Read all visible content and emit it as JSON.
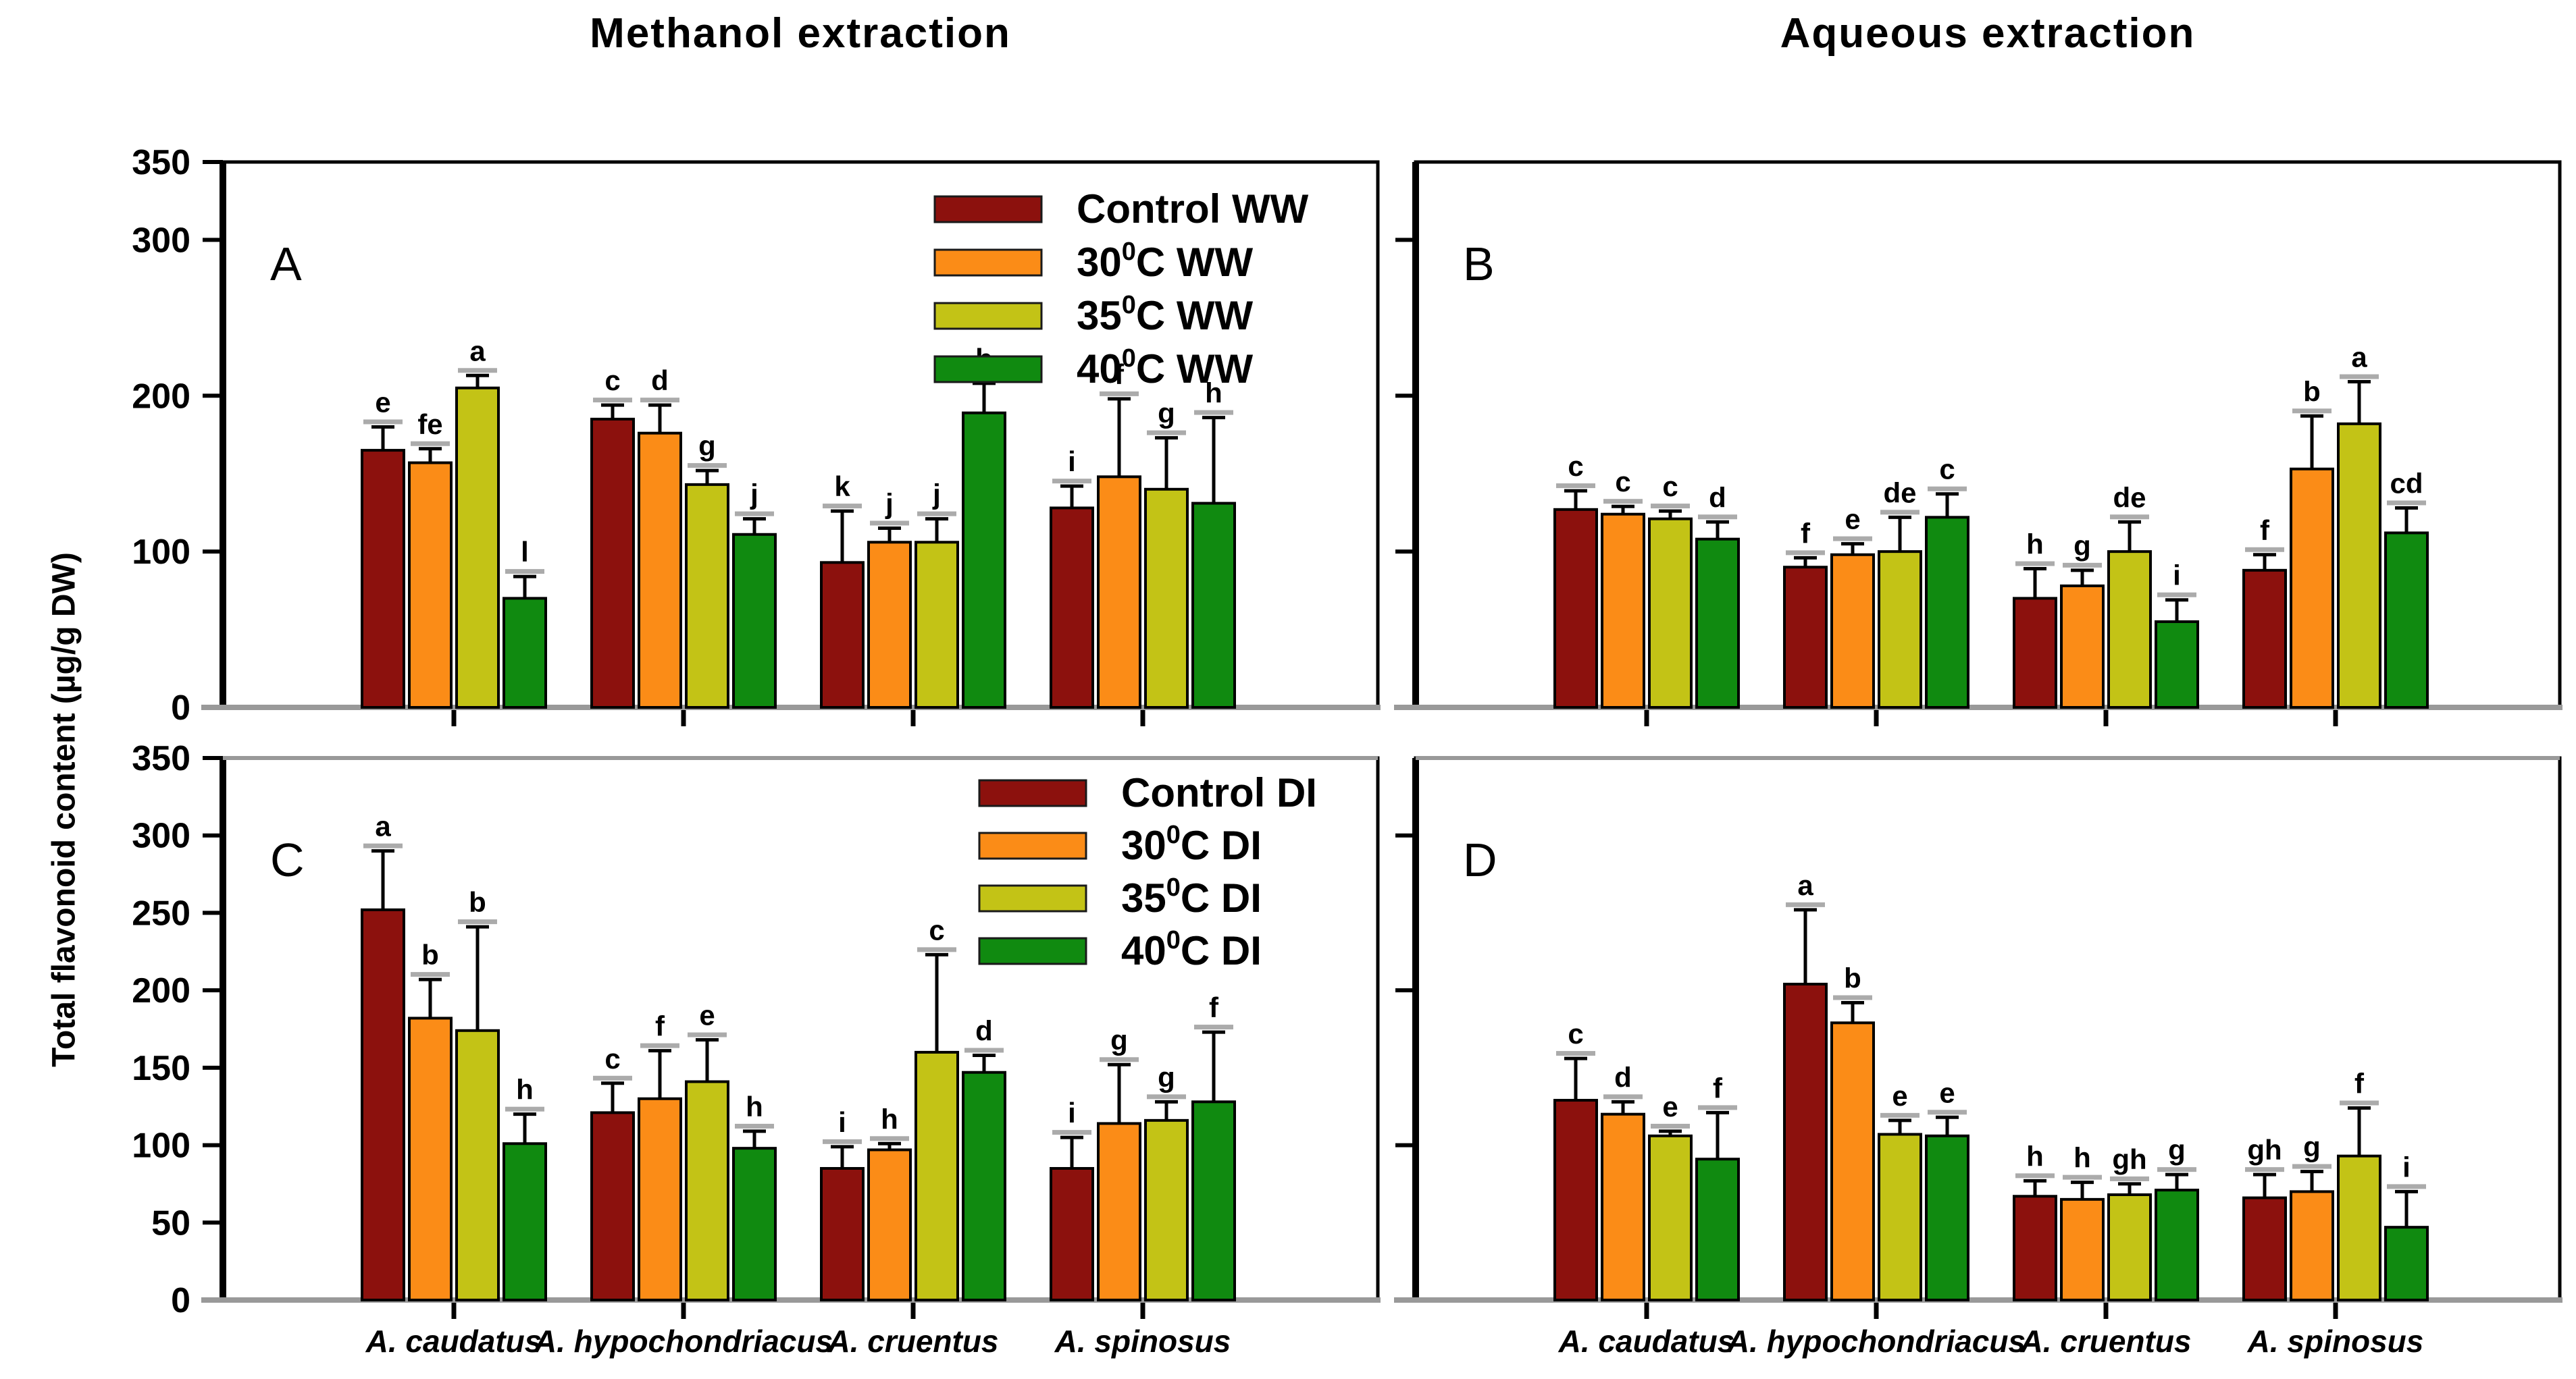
{
  "titles": {
    "methanol": "Methanol extraction",
    "aqueous": "Aqueous extraction",
    "y_axis": "Total flavonoid content (µg/g DW)"
  },
  "colors": {
    "control": "#8C110D",
    "t30": "#FB8C17",
    "t35": "#C3C316",
    "t40": "#108A10",
    "error_cap_gray": "#ABABAB",
    "axis_gray": "#999999",
    "frame_black": "#000000"
  },
  "chart_data": {
    "type": "bar",
    "title_left": "Methanol extraction",
    "title_right": "Aqueous extraction",
    "ylabel": "Total flavonoid content (µg/g DW)",
    "ylim": [
      0,
      350
    ],
    "grid": false,
    "legend_position": "top-right-inside",
    "categories": [
      "A. caudatus",
      "A. hypochondriacus",
      "A. cruentus",
      "A. spinosus"
    ],
    "panels": [
      {
        "id": "A",
        "col": "left",
        "row": "top",
        "extraction": "Methanol",
        "legend_visible": true,
        "legend_x_offset": 1054,
        "legend_y_offset": 70,
        "legend_row_step": 79,
        "y_ticks": [
          0,
          100,
          200,
          300,
          350
        ],
        "y_tick_labels": [
          "0",
          "100",
          "200",
          "300",
          "350"
        ],
        "series": [
          {
            "label": {
              "pre": "Control WW",
              "sup": "",
              "post": ""
            },
            "color_key": "control",
            "values": [
              165,
              185,
              93,
              128
            ],
            "errors": [
              15,
              9,
              33,
              14
            ],
            "letters": [
              "e",
              "c",
              "k",
              "i"
            ]
          },
          {
            "label": {
              "pre": "30",
              "sup": "0",
              "post": "C WW"
            },
            "color_key": "t30",
            "values": [
              157,
              176,
              106,
              148
            ],
            "errors": [
              9,
              18,
              9,
              50
            ],
            "letters": [
              "fe",
              "d",
              "j",
              "f"
            ]
          },
          {
            "label": {
              "pre": "35",
              "sup": "0",
              "post": "C WW"
            },
            "color_key": "t35",
            "values": [
              205,
              143,
              106,
              140
            ],
            "errors": [
              8,
              9,
              15,
              33
            ],
            "letters": [
              "a",
              "g",
              "j",
              "g"
            ]
          },
          {
            "label": {
              "pre": "40",
              "sup": "0",
              "post": "C WW"
            },
            "color_key": "t40",
            "values": [
              70,
              111,
              189,
              131
            ],
            "errors": [
              14,
              10,
              19,
              55
            ],
            "letters": [
              "l",
              "j",
              "b",
              "h"
            ]
          }
        ]
      },
      {
        "id": "B",
        "col": "right",
        "row": "top",
        "extraction": "Aqueous",
        "legend_visible": false,
        "legend_x_offset": 0,
        "legend_y_offset": 0,
        "legend_row_step": 0,
        "y_ticks": [
          100,
          200,
          300
        ],
        "y_tick_labels": null,
        "series": [
          {
            "label": {
              "pre": "Control WW",
              "sup": "",
              "post": ""
            },
            "color_key": "control",
            "values": [
              127,
              90,
              70,
              88
            ],
            "errors": [
              12,
              6,
              19,
              10
            ],
            "letters": [
              "c",
              "f",
              "h",
              "f"
            ]
          },
          {
            "label": {
              "pre": "30",
              "sup": "0",
              "post": "C WW"
            },
            "color_key": "t30",
            "values": [
              124,
              98,
              78,
              153
            ],
            "errors": [
              5,
              7,
              10,
              34
            ],
            "letters": [
              "c",
              "e",
              "g",
              "b"
            ]
          },
          {
            "label": {
              "pre": "35",
              "sup": "0",
              "post": "C WW"
            },
            "color_key": "t35",
            "values": [
              121,
              100,
              100,
              182
            ],
            "errors": [
              5,
              22,
              19,
              27
            ],
            "letters": [
              "c",
              "de",
              "de",
              "a"
            ]
          },
          {
            "label": {
              "pre": "40",
              "sup": "0",
              "post": "C WW"
            },
            "color_key": "t40",
            "values": [
              108,
              122,
              55,
              112
            ],
            "errors": [
              11,
              15,
              14,
              16
            ],
            "letters": [
              "d",
              "c",
              "i",
              "cd"
            ]
          }
        ]
      },
      {
        "id": "C",
        "col": "left",
        "row": "bottom",
        "extraction": "Methanol",
        "legend_visible": true,
        "legend_x_offset": 1120,
        "legend_y_offset": 52,
        "legend_row_step": 78,
        "y_ticks": [
          0,
          50,
          100,
          150,
          200,
          250,
          300,
          350
        ],
        "y_tick_labels": [
          "0",
          "50",
          "100",
          "150",
          "200",
          "250",
          "300",
          "350"
        ],
        "series": [
          {
            "label": {
              "pre": "Control DI",
              "sup": "",
              "post": ""
            },
            "color_key": "control",
            "values": [
              252,
              121,
              85,
              85
            ],
            "errors": [
              38,
              19,
              14,
              20
            ],
            "letters": [
              "a",
              "c",
              "i",
              "i"
            ]
          },
          {
            "label": {
              "pre": "30",
              "sup": "0",
              "post": "C DI"
            },
            "color_key": "t30",
            "values": [
              182,
              130,
              97,
              114
            ],
            "errors": [
              25,
              31,
              4,
              38
            ],
            "letters": [
              "b",
              "f",
              "h",
              "g"
            ]
          },
          {
            "label": {
              "pre": "35",
              "sup": "0",
              "post": "C DI"
            },
            "color_key": "t35",
            "values": [
              174,
              141,
              160,
              116
            ],
            "errors": [
              67,
              27,
              63,
              12
            ],
            "letters": [
              "b",
              "e",
              "c",
              "g"
            ]
          },
          {
            "label": {
              "pre": "40",
              "sup": "0",
              "post": "C DI"
            },
            "color_key": "t40",
            "values": [
              101,
              98,
              147,
              128
            ],
            "errors": [
              19,
              11,
              11,
              45
            ],
            "letters": [
              "h",
              "h",
              "d",
              "f"
            ]
          }
        ]
      },
      {
        "id": "D",
        "col": "right",
        "row": "bottom",
        "extraction": "Aqueous",
        "legend_visible": false,
        "legend_x_offset": 0,
        "legend_y_offset": 0,
        "legend_row_step": 0,
        "y_ticks": [
          100,
          200,
          300
        ],
        "y_tick_labels": null,
        "series": [
          {
            "label": {
              "pre": "Control DI",
              "sup": "",
              "post": ""
            },
            "color_key": "control",
            "values": [
              129,
              204,
              67,
              66
            ],
            "errors": [
              27,
              48,
              10,
              15
            ],
            "letters": [
              "c",
              "a",
              "h",
              "gh"
            ]
          },
          {
            "label": {
              "pre": "30",
              "sup": "0",
              "post": "C DI"
            },
            "color_key": "t30",
            "values": [
              120,
              179,
              65,
              70
            ],
            "errors": [
              8,
              13,
              11,
              13
            ],
            "letters": [
              "d",
              "b",
              "h",
              "g"
            ]
          },
          {
            "label": {
              "pre": "35",
              "sup": "0",
              "post": "C DI"
            },
            "color_key": "t35",
            "values": [
              106,
              107,
              68,
              93
            ],
            "errors": [
              3,
              9,
              7,
              31
            ],
            "letters": [
              "e",
              "e",
              "gh",
              "f"
            ]
          },
          {
            "label": {
              "pre": "40",
              "sup": "0",
              "post": "C DI"
            },
            "color_key": "t40",
            "values": [
              91,
              106,
              71,
              47
            ],
            "errors": [
              30,
              12,
              10,
              23
            ],
            "letters": [
              "f",
              "e",
              "g",
              "i"
            ]
          }
        ]
      }
    ]
  }
}
